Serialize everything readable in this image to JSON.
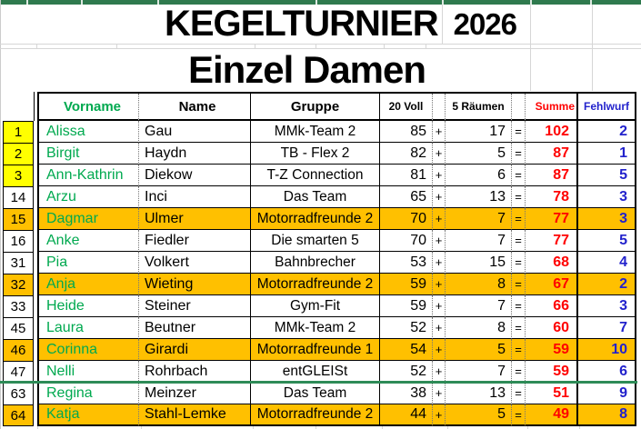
{
  "title": {
    "main": "KEGELTURNIER",
    "year": "2026"
  },
  "subtitle": "Einzel Damen",
  "table": {
    "headers": {
      "vorname": "Vorname",
      "name": "Name",
      "gruppe": "Gruppe",
      "voll": "20 Voll",
      "raeumen": "5 Räumen",
      "summe": "Summe",
      "fehlwurf": "Fehlwurf"
    },
    "operators": {
      "plus": "+",
      "equals": "="
    },
    "rows": [
      {
        "rank": 1,
        "vorname": "Alissa",
        "name": "Gau",
        "gruppe": "MMk-Team 2",
        "voll": 85,
        "raeumen": 17,
        "summe": 102,
        "fehlwurf": 2,
        "rank_highlight": "yellow",
        "row_highlight": "none",
        "separator_above": false
      },
      {
        "rank": 2,
        "vorname": "Birgit",
        "name": "Haydn",
        "gruppe": "TB - Flex 2",
        "voll": 82,
        "raeumen": 5,
        "summe": 87,
        "fehlwurf": 1,
        "rank_highlight": "yellow",
        "row_highlight": "none",
        "separator_above": false
      },
      {
        "rank": 3,
        "vorname": "Ann-Kathrin",
        "name": "Diekow",
        "gruppe": "T-Z Connection",
        "voll": 81,
        "raeumen": 6,
        "summe": 87,
        "fehlwurf": 5,
        "rank_highlight": "yellow",
        "row_highlight": "none",
        "separator_above": false
      },
      {
        "rank": 14,
        "vorname": "Arzu",
        "name": "Inci",
        "gruppe": "Das Team",
        "voll": 65,
        "raeumen": 13,
        "summe": 78,
        "fehlwurf": 3,
        "rank_highlight": "none",
        "row_highlight": "none",
        "separator_above": false
      },
      {
        "rank": 15,
        "vorname": "Dagmar",
        "name": "Ulmer",
        "gruppe": "Motorradfreunde 2",
        "voll": 70,
        "raeumen": 7,
        "summe": 77,
        "fehlwurf": 3,
        "rank_highlight": "orange",
        "row_highlight": "orange",
        "separator_above": false
      },
      {
        "rank": 16,
        "vorname": "Anke",
        "name": "Fiedler",
        "gruppe": "Die smarten 5",
        "voll": 70,
        "raeumen": 7,
        "summe": 77,
        "fehlwurf": 5,
        "rank_highlight": "none",
        "row_highlight": "none",
        "separator_above": false
      },
      {
        "rank": 31,
        "vorname": "Pia",
        "name": "Volkert",
        "gruppe": "Bahnbrecher",
        "voll": 53,
        "raeumen": 15,
        "summe": 68,
        "fehlwurf": 4,
        "rank_highlight": "none",
        "row_highlight": "none",
        "separator_above": false
      },
      {
        "rank": 32,
        "vorname": "Anja",
        "name": "Wieting",
        "gruppe": "Motorradfreunde 2",
        "voll": 59,
        "raeumen": 8,
        "summe": 67,
        "fehlwurf": 2,
        "rank_highlight": "orange",
        "row_highlight": "orange",
        "separator_above": false
      },
      {
        "rank": 33,
        "vorname": "Heide",
        "name": "Steiner",
        "gruppe": "Gym-Fit",
        "voll": 59,
        "raeumen": 7,
        "summe": 66,
        "fehlwurf": 3,
        "rank_highlight": "none",
        "row_highlight": "none",
        "separator_above": false
      },
      {
        "rank": 45,
        "vorname": "Laura",
        "name": "Beutner",
        "gruppe": "MMk-Team 2",
        "voll": 52,
        "raeumen": 8,
        "summe": 60,
        "fehlwurf": 7,
        "rank_highlight": "none",
        "row_highlight": "none",
        "separator_above": false
      },
      {
        "rank": 46,
        "vorname": "Corinna",
        "name": "Girardi",
        "gruppe": "Motorradfreunde 1",
        "voll": 54,
        "raeumen": 5,
        "summe": 59,
        "fehlwurf": 10,
        "rank_highlight": "orange",
        "row_highlight": "orange",
        "separator_above": false
      },
      {
        "rank": 47,
        "vorname": "Nelli",
        "name": "Rohrbach",
        "gruppe": "entGLEISt",
        "voll": 52,
        "raeumen": 7,
        "summe": 59,
        "fehlwurf": 6,
        "rank_highlight": "none",
        "row_highlight": "none",
        "separator_above": false
      },
      {
        "rank": 63,
        "vorname": "Regina",
        "name": "Meinzer",
        "gruppe": "Das Team",
        "voll": 38,
        "raeumen": 13,
        "summe": 51,
        "fehlwurf": 9,
        "rank_highlight": "none",
        "row_highlight": "none",
        "separator_above": true
      },
      {
        "rank": 64,
        "vorname": "Katja",
        "name": "Stahl-Lemke",
        "gruppe": "Motorradfreunde 2",
        "voll": 44,
        "raeumen": 5,
        "summe": 49,
        "fehlwurf": 8,
        "rank_highlight": "orange",
        "row_highlight": "orange",
        "separator_above": false
      }
    ]
  },
  "colors": {
    "orange": "#ffc000",
    "yellow": "#ffff00",
    "green_text": "#00a94f",
    "red_text": "#ff0000",
    "blue_text": "#2222cc",
    "bar_green": "#2f7a4e",
    "separator_green": "#2e8b57",
    "grid": "#d6d6d6"
  }
}
